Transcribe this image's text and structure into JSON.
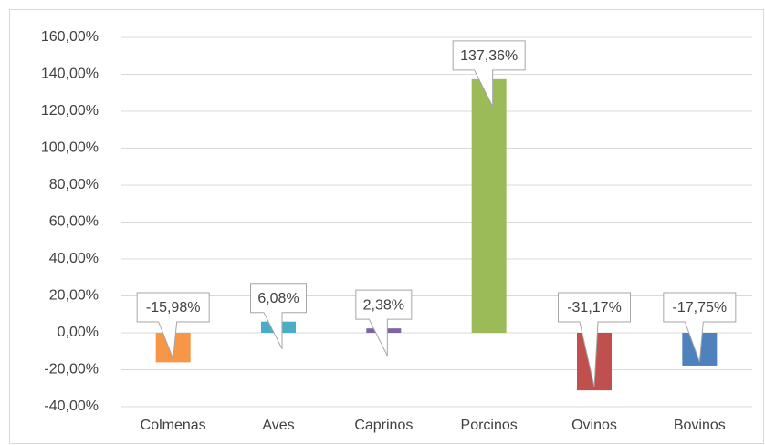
{
  "chart_data": {
    "type": "bar",
    "categories": [
      "Colmenas",
      "Aves",
      "Caprinos",
      "Porcinos",
      "Ovinos",
      "Bovinos"
    ],
    "values": [
      -15.98,
      6.08,
      2.38,
      137.36,
      -31.17,
      -17.75
    ],
    "value_labels": [
      "-15,98%",
      "6,08%",
      "2,38%",
      "137,36%",
      "-31,17%",
      "-17,75%"
    ],
    "colors": [
      "#f79646",
      "#4bacc6",
      "#8064a2",
      "#9bbb59",
      "#c0504d",
      "#4f81bd"
    ],
    "ylim": [
      -40,
      160
    ],
    "yticks": [
      {
        "value": -40,
        "label": "-40,00%"
      },
      {
        "value": -20,
        "label": "-20,00%"
      },
      {
        "value": 0,
        "label": "0,00%"
      },
      {
        "value": 20,
        "label": "20,00%"
      },
      {
        "value": 40,
        "label": "40,00%"
      },
      {
        "value": 60,
        "label": "60,00%"
      },
      {
        "value": 80,
        "label": "80,00%"
      },
      {
        "value": 100,
        "label": "100,00%"
      },
      {
        "value": 120,
        "label": "120,00%"
      },
      {
        "value": 140,
        "label": "140,00%"
      },
      {
        "value": 160,
        "label": "160,00%"
      }
    ],
    "grid": true
  }
}
